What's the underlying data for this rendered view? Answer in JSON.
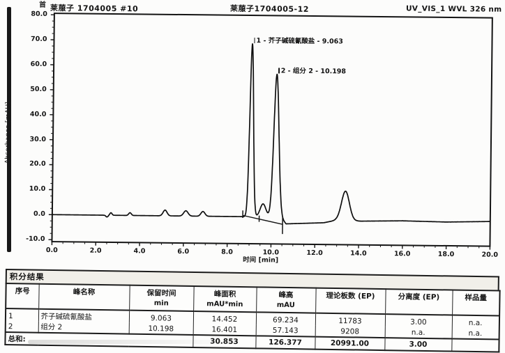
{
  "header": {
    "left_sample": "莱菔子 1704005 #10",
    "center_sample": "莱菔子1704005-12",
    "detector": "UV_VIS_1 WVL 326 nm",
    "stamp_artifact": "首"
  },
  "chart": {
    "y_axis_label": "Absorbance [mAU]",
    "x_axis_label": "时间 [min]",
    "y_tick_labels": [
      "80.0",
      "70.0",
      "60.0",
      "50.0",
      "40.0",
      "30.0",
      "20.0",
      "10.0",
      "0.0",
      "-10.0"
    ],
    "x_tick_labels": [
      "0.0",
      "2.0",
      "4.0",
      "6.0",
      "8.0",
      "10.0",
      "12.0",
      "14.0",
      "16.0",
      "18.0",
      "20.0"
    ]
  },
  "chart_data": {
    "type": "line",
    "title": "UV_VIS_1 WVL 326 nm chromatogram",
    "xlabel": "时间 [min]",
    "ylabel": "Absorbance [mAU]",
    "xlim": [
      0,
      20
    ],
    "ylim": [
      -10,
      80
    ],
    "x_major_step": 2,
    "x_minor_step": 0.5,
    "y_major_step": 10,
    "y_minor_step": 2.5,
    "grid": false,
    "legend": false,
    "peaks": [
      {
        "no": 1,
        "name": "芥子碱硫氰酸盐",
        "label": "1 - 芥子碱硫氰酸盐 - 9.063",
        "retention_min": 9.063,
        "height_mAU": 69.234,
        "area_mAU_min": 14.452,
        "sigma_min": 0.083
      },
      {
        "no": 2,
        "name": "组分 2",
        "label": "2 - 组分 2 - 10.198",
        "retention_min": 10.198,
        "height_mAU": 57.143,
        "area_mAU_min": 16.401,
        "sigma_min": 0.115
      }
    ],
    "unlabeled_features": [
      {
        "t": 2.5,
        "h": -0.7,
        "sigma": 0.05
      },
      {
        "t": 2.68,
        "h": 1.0,
        "sigma": 0.05
      },
      {
        "t": 3.55,
        "h": 1.1,
        "sigma": 0.06
      },
      {
        "t": 5.15,
        "h": 2.3,
        "sigma": 0.09
      },
      {
        "t": 6.1,
        "h": 2.1,
        "sigma": 0.1
      },
      {
        "t": 6.88,
        "h": 1.9,
        "sigma": 0.09
      },
      {
        "t": 9.62,
        "h": 5.2,
        "sigma": 0.13
      },
      {
        "t": 13.38,
        "h": 11.8,
        "sigma": 0.18
      }
    ],
    "baseline_nodes": [
      [
        0,
        0
      ],
      [
        10.42,
        0
      ],
      [
        10.68,
        -2.7
      ],
      [
        12.4,
        -2.1
      ],
      [
        12.95,
        -1.1
      ],
      [
        14.1,
        -1.3
      ],
      [
        16,
        -1.0
      ],
      [
        18,
        -1.3
      ],
      [
        20,
        -0.9
      ]
    ],
    "integration_marks": {
      "baseline_segment": [
        [
          8.7,
          0.5
        ],
        [
          10.52,
          -2.9
        ]
      ],
      "start_tick": {
        "t": 8.7,
        "a1": -0.5,
        "a2": 2.5
      },
      "valley_tick": {
        "t": 9.45,
        "a1": -2.0,
        "a2": 0.5
      },
      "drop_line": {
        "t": 10.52,
        "a1": -6.8,
        "a2": 0.2
      }
    }
  },
  "table": {
    "title": "积分结果",
    "columns": [
      {
        "label": "序号",
        "unit": ""
      },
      {
        "label": "峰名称",
        "unit": ""
      },
      {
        "label": "保留时间",
        "unit": "min"
      },
      {
        "label": "峰面积",
        "unit": "mAU*min"
      },
      {
        "label": "峰高",
        "unit": "mAU"
      },
      {
        "label": "理论板数 (EP)",
        "unit": ""
      },
      {
        "label": "分离度 (EP)",
        "unit": ""
      },
      {
        "label": "样品量",
        "unit": ""
      }
    ],
    "rows": [
      [
        "1",
        "芥子碱硫氰酸盐",
        "9.063",
        "14.452",
        "69.234",
        "11783",
        "3.00",
        "n.a."
      ],
      [
        "2",
        "组分 2",
        "10.198",
        "16.401",
        "57.143",
        "9208",
        "n.a.",
        "n.a."
      ]
    ],
    "total_label": "总和:",
    "total_row": [
      "30.853",
      "126.377",
      "20991.00",
      "3.00",
      ""
    ]
  }
}
